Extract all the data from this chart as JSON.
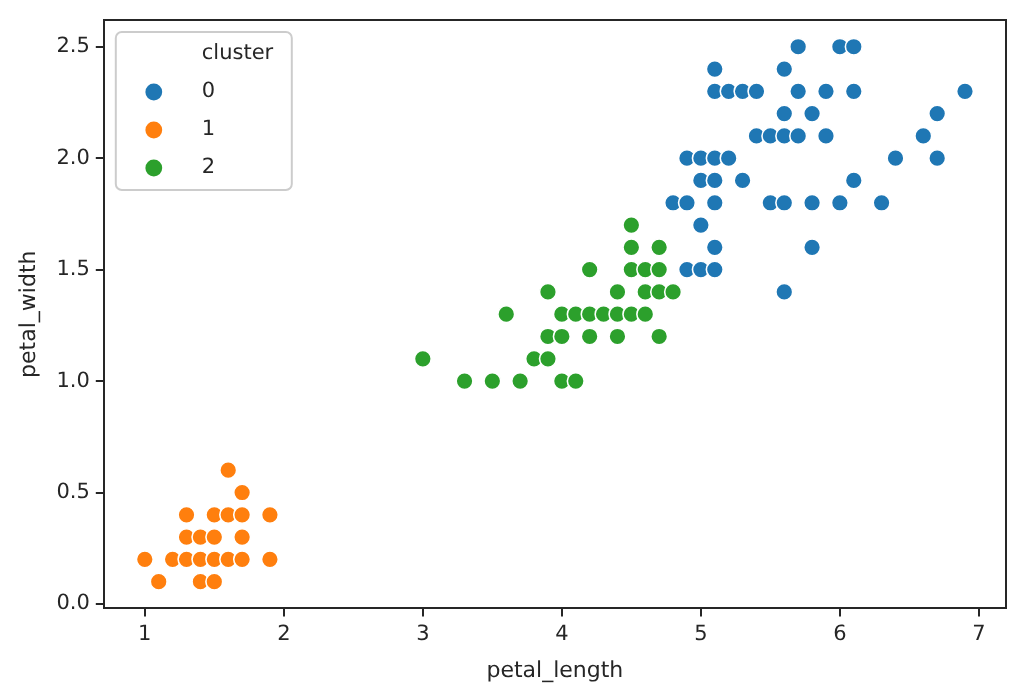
{
  "chart_data": {
    "type": "scatter",
    "xlabel": "petal_length",
    "ylabel": "petal_width",
    "legend_title": "cluster",
    "legend": "top left",
    "grid": false,
    "marker": "circle",
    "xlim": [
      0.705,
      7.195
    ],
    "ylim": [
      -0.02,
      2.62
    ],
    "xticks": [
      1,
      2,
      3,
      4,
      5,
      6,
      7
    ],
    "yticks": [
      {
        "value": 0,
        "label": "0.0"
      },
      {
        "value": 0.5,
        "label": "0.5"
      },
      {
        "value": 1,
        "label": "1.0"
      },
      {
        "value": 1.5,
        "label": "1.5"
      },
      {
        "value": 2,
        "label": "2.0"
      },
      {
        "value": 2.5,
        "label": "2.5"
      }
    ],
    "series": [
      {
        "name": "0",
        "color": "#1f77b4",
        "x": [
          5.7,
          6.0,
          6.1,
          5.1,
          5.6,
          5.1,
          5.2,
          5.3,
          5.4,
          5.7,
          5.9,
          6.1,
          6.9,
          5.6,
          5.8,
          6.7,
          5.4,
          5.5,
          5.6,
          5.7,
          5.9,
          6.6,
          4.9,
          5.0,
          5.1,
          5.2,
          6.4,
          6.7,
          5.0,
          5.1,
          5.3,
          6.1,
          4.8,
          4.9,
          5.1,
          5.5,
          5.6,
          5.8,
          6.0,
          6.3,
          5.0,
          5.1,
          5.8,
          4.9,
          5.0,
          5.1,
          5.6
        ],
        "values": [
          2.5,
          2.5,
          2.5,
          2.4,
          2.4,
          2.3,
          2.3,
          2.3,
          2.3,
          2.3,
          2.3,
          2.3,
          2.3,
          2.2,
          2.2,
          2.2,
          2.1,
          2.1,
          2.1,
          2.1,
          2.1,
          2.1,
          2.0,
          2.0,
          2.0,
          2.0,
          2.0,
          2.0,
          1.9,
          1.9,
          1.9,
          1.9,
          1.8,
          1.8,
          1.8,
          1.8,
          1.8,
          1.8,
          1.8,
          1.8,
          1.7,
          1.6,
          1.6,
          1.5,
          1.5,
          1.5,
          1.4
        ]
      },
      {
        "name": "1",
        "color": "#ff7f0e",
        "x": [
          1.6,
          1.7,
          1.3,
          1.5,
          1.6,
          1.7,
          1.9,
          1.3,
          1.4,
          1.5,
          1.7,
          1.0,
          1.2,
          1.3,
          1.4,
          1.5,
          1.6,
          1.7,
          1.9,
          1.1,
          1.4,
          1.5
        ],
        "values": [
          0.6,
          0.5,
          0.4,
          0.4,
          0.4,
          0.4,
          0.4,
          0.3,
          0.3,
          0.3,
          0.3,
          0.2,
          0.2,
          0.2,
          0.2,
          0.2,
          0.2,
          0.2,
          0.2,
          0.1,
          0.1,
          0.1
        ]
      },
      {
        "name": "2",
        "color": "#2ca02c",
        "x": [
          4.5,
          4.5,
          4.7,
          4.2,
          4.5,
          4.6,
          4.7,
          3.9,
          4.4,
          4.6,
          4.7,
          4.8,
          3.6,
          4.0,
          4.1,
          4.2,
          4.3,
          4.4,
          4.5,
          4.6,
          3.9,
          4.0,
          4.2,
          4.4,
          4.7,
          3.0,
          3.8,
          3.9,
          3.3,
          3.5,
          3.7,
          4.0,
          4.1
        ],
        "values": [
          1.7,
          1.6,
          1.6,
          1.5,
          1.5,
          1.5,
          1.5,
          1.4,
          1.4,
          1.4,
          1.4,
          1.4,
          1.3,
          1.3,
          1.3,
          1.3,
          1.3,
          1.3,
          1.3,
          1.3,
          1.2,
          1.2,
          1.2,
          1.2,
          1.2,
          1.1,
          1.1,
          1.1,
          1.0,
          1.0,
          1.0,
          1.0,
          1.0
        ]
      }
    ]
  }
}
